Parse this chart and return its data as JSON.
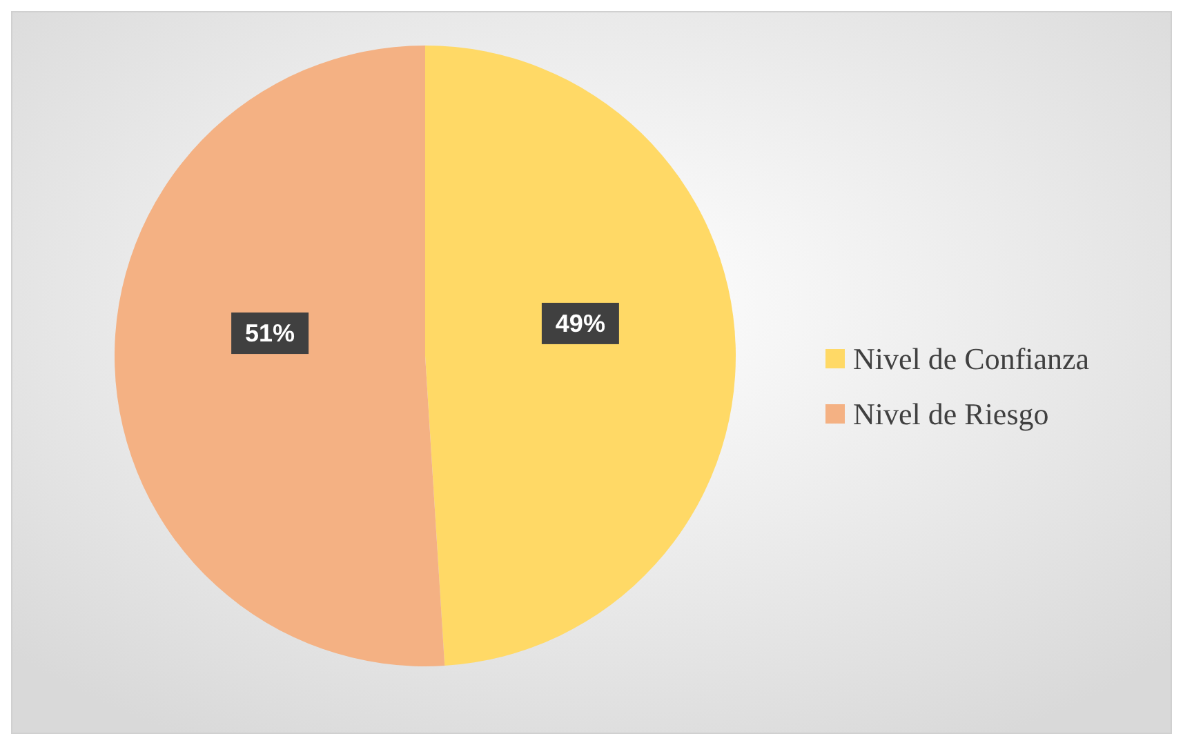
{
  "chart_data": {
    "type": "pie",
    "categories": [
      "Nivel de Confianza",
      "Nivel de Riesgo"
    ],
    "values": [
      49,
      51
    ],
    "colors": [
      "#ffd966",
      "#f4b183"
    ],
    "value_labels": [
      "49%",
      "51%"
    ],
    "legend": "right"
  }
}
